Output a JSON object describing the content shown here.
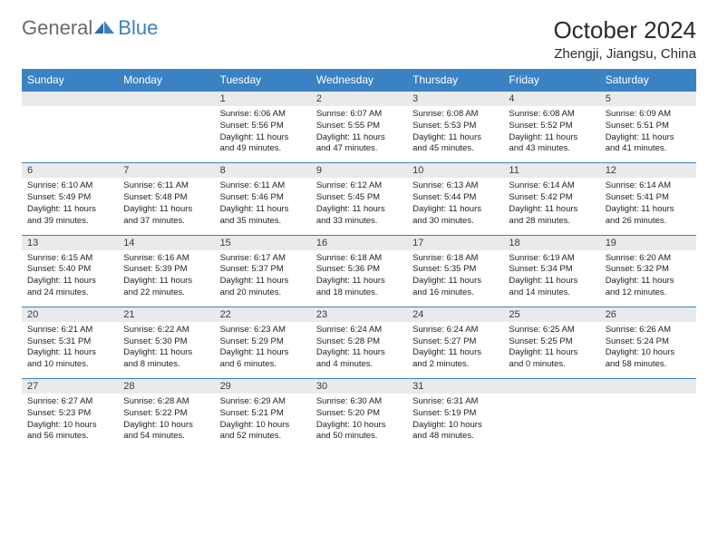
{
  "brand": {
    "general": "General",
    "blue": "Blue"
  },
  "title": "October 2024",
  "location": "Zhengji, Jiangsu, China",
  "colors": {
    "header_bg": "#3b82c4",
    "header_text": "#ffffff",
    "daynum_bg": "#e9eaec",
    "border": "#3b82c4",
    "text": "#222222",
    "background": "#ffffff"
  },
  "typography": {
    "title_fontsize": 26,
    "location_fontsize": 15,
    "dayheader_fontsize": 12,
    "daynum_fontsize": 11,
    "body_fontsize": 9.5
  },
  "day_names": [
    "Sunday",
    "Monday",
    "Tuesday",
    "Wednesday",
    "Thursday",
    "Friday",
    "Saturday"
  ],
  "weeks": [
    [
      null,
      null,
      {
        "n": "1",
        "sr": "Sunrise: 6:06 AM",
        "ss": "Sunset: 5:56 PM",
        "dl": "Daylight: 11 hours and 49 minutes."
      },
      {
        "n": "2",
        "sr": "Sunrise: 6:07 AM",
        "ss": "Sunset: 5:55 PM",
        "dl": "Daylight: 11 hours and 47 minutes."
      },
      {
        "n": "3",
        "sr": "Sunrise: 6:08 AM",
        "ss": "Sunset: 5:53 PM",
        "dl": "Daylight: 11 hours and 45 minutes."
      },
      {
        "n": "4",
        "sr": "Sunrise: 6:08 AM",
        "ss": "Sunset: 5:52 PM",
        "dl": "Daylight: 11 hours and 43 minutes."
      },
      {
        "n": "5",
        "sr": "Sunrise: 6:09 AM",
        "ss": "Sunset: 5:51 PM",
        "dl": "Daylight: 11 hours and 41 minutes."
      }
    ],
    [
      {
        "n": "6",
        "sr": "Sunrise: 6:10 AM",
        "ss": "Sunset: 5:49 PM",
        "dl": "Daylight: 11 hours and 39 minutes."
      },
      {
        "n": "7",
        "sr": "Sunrise: 6:11 AM",
        "ss": "Sunset: 5:48 PM",
        "dl": "Daylight: 11 hours and 37 minutes."
      },
      {
        "n": "8",
        "sr": "Sunrise: 6:11 AM",
        "ss": "Sunset: 5:46 PM",
        "dl": "Daylight: 11 hours and 35 minutes."
      },
      {
        "n": "9",
        "sr": "Sunrise: 6:12 AM",
        "ss": "Sunset: 5:45 PM",
        "dl": "Daylight: 11 hours and 33 minutes."
      },
      {
        "n": "10",
        "sr": "Sunrise: 6:13 AM",
        "ss": "Sunset: 5:44 PM",
        "dl": "Daylight: 11 hours and 30 minutes."
      },
      {
        "n": "11",
        "sr": "Sunrise: 6:14 AM",
        "ss": "Sunset: 5:42 PM",
        "dl": "Daylight: 11 hours and 28 minutes."
      },
      {
        "n": "12",
        "sr": "Sunrise: 6:14 AM",
        "ss": "Sunset: 5:41 PM",
        "dl": "Daylight: 11 hours and 26 minutes."
      }
    ],
    [
      {
        "n": "13",
        "sr": "Sunrise: 6:15 AM",
        "ss": "Sunset: 5:40 PM",
        "dl": "Daylight: 11 hours and 24 minutes."
      },
      {
        "n": "14",
        "sr": "Sunrise: 6:16 AM",
        "ss": "Sunset: 5:39 PM",
        "dl": "Daylight: 11 hours and 22 minutes."
      },
      {
        "n": "15",
        "sr": "Sunrise: 6:17 AM",
        "ss": "Sunset: 5:37 PM",
        "dl": "Daylight: 11 hours and 20 minutes."
      },
      {
        "n": "16",
        "sr": "Sunrise: 6:18 AM",
        "ss": "Sunset: 5:36 PM",
        "dl": "Daylight: 11 hours and 18 minutes."
      },
      {
        "n": "17",
        "sr": "Sunrise: 6:18 AM",
        "ss": "Sunset: 5:35 PM",
        "dl": "Daylight: 11 hours and 16 minutes."
      },
      {
        "n": "18",
        "sr": "Sunrise: 6:19 AM",
        "ss": "Sunset: 5:34 PM",
        "dl": "Daylight: 11 hours and 14 minutes."
      },
      {
        "n": "19",
        "sr": "Sunrise: 6:20 AM",
        "ss": "Sunset: 5:32 PM",
        "dl": "Daylight: 11 hours and 12 minutes."
      }
    ],
    [
      {
        "n": "20",
        "sr": "Sunrise: 6:21 AM",
        "ss": "Sunset: 5:31 PM",
        "dl": "Daylight: 11 hours and 10 minutes."
      },
      {
        "n": "21",
        "sr": "Sunrise: 6:22 AM",
        "ss": "Sunset: 5:30 PM",
        "dl": "Daylight: 11 hours and 8 minutes."
      },
      {
        "n": "22",
        "sr": "Sunrise: 6:23 AM",
        "ss": "Sunset: 5:29 PM",
        "dl": "Daylight: 11 hours and 6 minutes."
      },
      {
        "n": "23",
        "sr": "Sunrise: 6:24 AM",
        "ss": "Sunset: 5:28 PM",
        "dl": "Daylight: 11 hours and 4 minutes."
      },
      {
        "n": "24",
        "sr": "Sunrise: 6:24 AM",
        "ss": "Sunset: 5:27 PM",
        "dl": "Daylight: 11 hours and 2 minutes."
      },
      {
        "n": "25",
        "sr": "Sunrise: 6:25 AM",
        "ss": "Sunset: 5:25 PM",
        "dl": "Daylight: 11 hours and 0 minutes."
      },
      {
        "n": "26",
        "sr": "Sunrise: 6:26 AM",
        "ss": "Sunset: 5:24 PM",
        "dl": "Daylight: 10 hours and 58 minutes."
      }
    ],
    [
      {
        "n": "27",
        "sr": "Sunrise: 6:27 AM",
        "ss": "Sunset: 5:23 PM",
        "dl": "Daylight: 10 hours and 56 minutes."
      },
      {
        "n": "28",
        "sr": "Sunrise: 6:28 AM",
        "ss": "Sunset: 5:22 PM",
        "dl": "Daylight: 10 hours and 54 minutes."
      },
      {
        "n": "29",
        "sr": "Sunrise: 6:29 AM",
        "ss": "Sunset: 5:21 PM",
        "dl": "Daylight: 10 hours and 52 minutes."
      },
      {
        "n": "30",
        "sr": "Sunrise: 6:30 AM",
        "ss": "Sunset: 5:20 PM",
        "dl": "Daylight: 10 hours and 50 minutes."
      },
      {
        "n": "31",
        "sr": "Sunrise: 6:31 AM",
        "ss": "Sunset: 5:19 PM",
        "dl": "Daylight: 10 hours and 48 minutes."
      },
      null,
      null
    ]
  ]
}
